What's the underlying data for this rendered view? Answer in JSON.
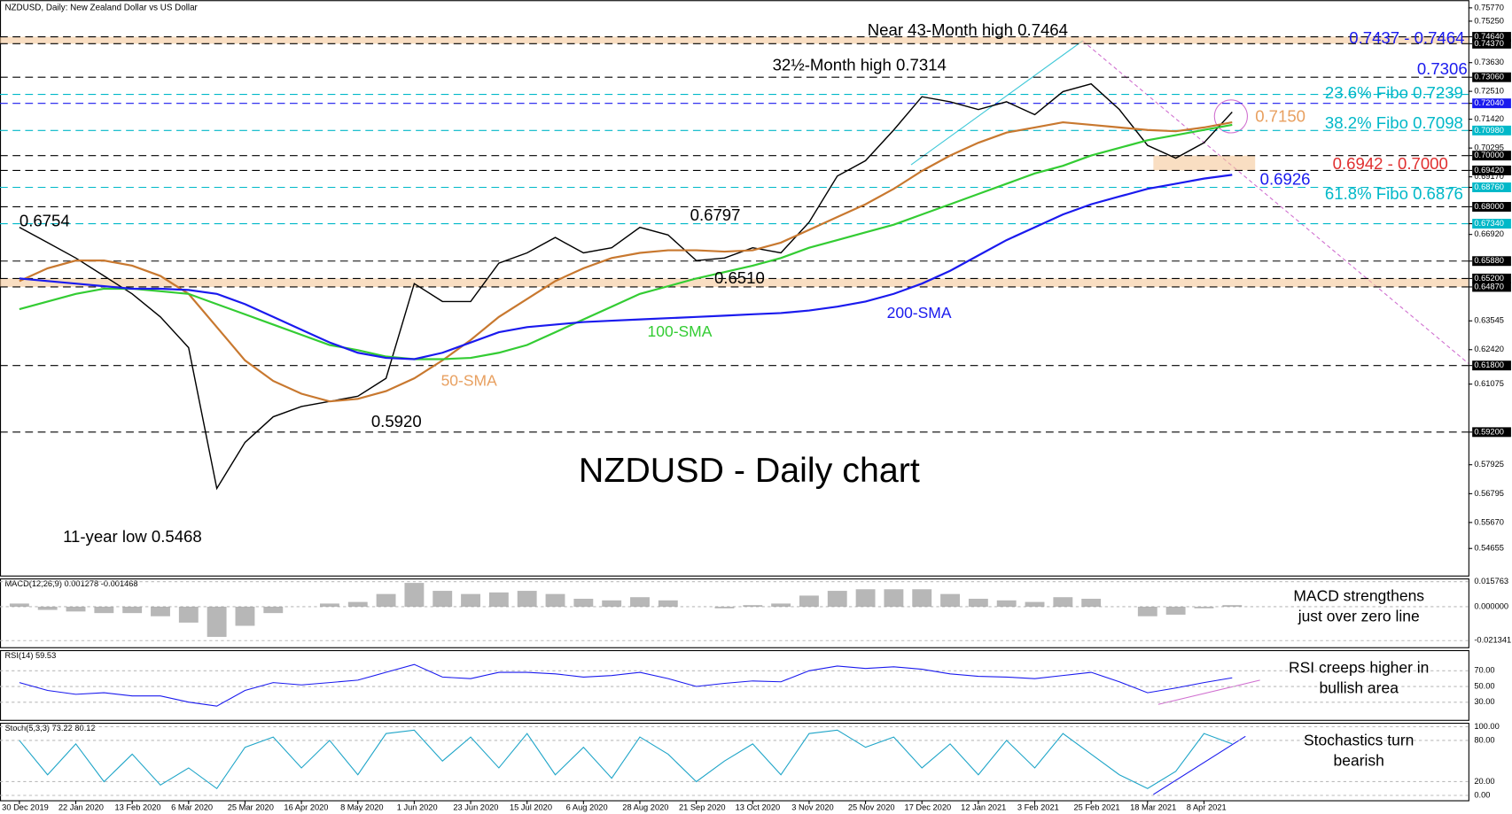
{
  "chart_data": {
    "type": "line",
    "header": "NZDUSD, Daily:  New Zealand Dollar vs US Dollar",
    "title": "NZDUSD - Daily chart",
    "categories": [
      "30 Dec 2019",
      null,
      "22 Jan 2020",
      null,
      "13 Feb 2020",
      null,
      "6 Mar 2020",
      null,
      "25 Mar 2020",
      null,
      "16 Apr 2020",
      null,
      "8 May 2020",
      null,
      "1 Jun 2020",
      null,
      "23 Jun 2020",
      null,
      "15 Jul 2020",
      null,
      "6 Aug 2020",
      null,
      "28 Aug 2020",
      null,
      "21 Sep 2020",
      null,
      "13 Oct 2020",
      null,
      "3 Nov 2020",
      null,
      "25 Nov 2020",
      null,
      "17 Dec 2020",
      null,
      "12 Jan 2021",
      null,
      "3 Feb 2021",
      null,
      "25 Feb 2021",
      null,
      "18 Mar 2021",
      null,
      "8 Apr 2021",
      null
    ],
    "series": [
      {
        "color": "#000000",
        "values": [
          0.672,
          0.666,
          0.66,
          0.653,
          0.646,
          0.637,
          0.625,
          0.57,
          0.588,
          0.598,
          0.602,
          0.604,
          0.606,
          0.613,
          0.65,
          0.643,
          0.643,
          0.658,
          0.662,
          0.668,
          0.662,
          0.664,
          0.672,
          0.669,
          0.659,
          0.66,
          0.664,
          0.662,
          0.674,
          0.692,
          0.698,
          0.71,
          0.723,
          0.721,
          0.718,
          0.721,
          0.716,
          0.725,
          0.728,
          0.718,
          0.704,
          0.699,
          0.705,
          0.717
        ]
      },
      {
        "color": "#c8782f",
        "values": [
          0.651,
          0.656,
          0.659,
          0.659,
          0.657,
          0.653,
          0.646,
          0.633,
          0.62,
          0.612,
          0.607,
          0.604,
          0.605,
          0.608,
          0.613,
          0.62,
          0.628,
          0.637,
          0.644,
          0.651,
          0.656,
          0.66,
          0.662,
          0.663,
          0.663,
          0.6625,
          0.663,
          0.666,
          0.671,
          0.676,
          0.681,
          0.687,
          0.694,
          0.7,
          0.705,
          0.709,
          0.711,
          0.713,
          0.712,
          0.711,
          0.71,
          0.7095,
          0.711,
          0.713
        ]
      },
      {
        "color": "#33cc33",
        "values": [
          0.64,
          0.643,
          0.646,
          0.648,
          0.648,
          0.647,
          0.646,
          0.642,
          0.638,
          0.634,
          0.63,
          0.626,
          0.624,
          0.6215,
          0.6205,
          0.6205,
          0.621,
          0.623,
          0.626,
          0.631,
          0.636,
          0.641,
          0.646,
          0.649,
          0.652,
          0.6545,
          0.657,
          0.66,
          0.664,
          0.667,
          0.67,
          0.673,
          0.677,
          0.681,
          0.685,
          0.689,
          0.693,
          0.696,
          0.7,
          0.703,
          0.706,
          0.708,
          0.71,
          0.712
        ]
      },
      {
        "color": "#1a1aee",
        "values": [
          0.652,
          0.651,
          0.65,
          0.649,
          0.648,
          0.648,
          0.6475,
          0.646,
          0.642,
          0.637,
          0.632,
          0.627,
          0.623,
          0.621,
          0.6205,
          0.623,
          0.627,
          0.631,
          0.633,
          0.634,
          0.635,
          0.6355,
          0.636,
          0.6365,
          0.637,
          0.6375,
          0.638,
          0.6385,
          0.6395,
          0.641,
          0.643,
          0.646,
          0.65,
          0.655,
          0.661,
          0.667,
          0.672,
          0.677,
          0.681,
          0.684,
          0.687,
          0.689,
          0.691,
          0.6925
        ]
      }
    ],
    "ylim": [
      0.5356,
      0.7607
    ],
    "yticks": [
      {
        "value": 0.7577,
        "label": "0.75770"
      },
      {
        "value": 0.7525,
        "label": "0.75250"
      },
      {
        "value": 0.7464,
        "label": "0.74640"
      },
      {
        "value": 0.7437,
        "label": "0.74370"
      },
      {
        "value": 0.7363,
        "label": "0.73630"
      },
      {
        "value": 0.7306,
        "label": "0.73060"
      },
      {
        "value": 0.7251,
        "label": "0.72510"
      },
      {
        "value": 0.7204,
        "label": "0.72040"
      },
      {
        "value": 0.7142,
        "label": "0.71420"
      },
      {
        "value": 0.7098,
        "label": "0.70980"
      },
      {
        "value": 0.70295,
        "label": "0.70295"
      },
      {
        "value": 0.7,
        "label": "0.70000"
      },
      {
        "value": 0.6942,
        "label": "0.69420"
      },
      {
        "value": 0.6917,
        "label": "0.69170"
      },
      {
        "value": 0.6876,
        "label": "0.68760"
      },
      {
        "value": 0.68,
        "label": "0.68000"
      },
      {
        "value": 0.6734,
        "label": "0.67340"
      },
      {
        "value": 0.6692,
        "label": "0.66920"
      },
      {
        "value": 0.6588,
        "label": "0.65880"
      },
      {
        "value": 0.652,
        "label": "0.65200"
      },
      {
        "value": 0.6487,
        "label": "0.64870"
      },
      {
        "value": 0.63545,
        "label": "0.63545"
      },
      {
        "value": 0.6242,
        "label": "0.62420"
      },
      {
        "value": 0.618,
        "label": "0.61800"
      },
      {
        "value": 0.61075,
        "label": "0.61075"
      },
      {
        "value": 0.592,
        "label": "0.59200"
      },
      {
        "value": 0.57925,
        "label": "0.57925"
      },
      {
        "value": 0.56795,
        "label": "0.56795"
      },
      {
        "value": 0.5567,
        "label": "0.55670"
      },
      {
        "value": 0.54655,
        "label": "0.54655"
      }
    ],
    "levels": [
      {
        "value": 0.7464,
        "color": "#000000"
      },
      {
        "value": 0.7437,
        "color": "#000000"
      },
      {
        "value": 0.7306,
        "color": "#000000"
      },
      {
        "value": 0.7239,
        "color": "#00b8c8"
      },
      {
        "value": 0.7204,
        "color": "#1a1aee"
      },
      {
        "value": 0.7098,
        "color": "#00b8c8"
      },
      {
        "value": 0.7,
        "color": "#000000"
      },
      {
        "value": 0.6942,
        "color": "#000000"
      },
      {
        "value": 0.6876,
        "color": "#00b8c8"
      },
      {
        "value": 0.68,
        "color": "#000000"
      },
      {
        "value": 0.6734,
        "color": "#00b8c8"
      },
      {
        "value": 0.6588,
        "color": "#000000"
      },
      {
        "value": 0.652,
        "color": "#000000"
      },
      {
        "value": 0.6487,
        "color": "#000000"
      },
      {
        "value": 0.618,
        "color": "#000000"
      },
      {
        "value": 0.592,
        "color": "#000000"
      }
    ],
    "bands": [
      [
        0.7437,
        0.7464
      ],
      [
        0.6487,
        0.652
      ],
      [
        0.6942,
        0.7
      ]
    ],
    "annotations": [
      {
        "text": "Near 43-Month high 0.7464",
        "color": "#000000"
      },
      {
        "text": "32½-Month high 0.7314",
        "color": "#000000"
      },
      {
        "text": "0.7437 - 0.7464",
        "color": "#1a1aee"
      },
      {
        "text": "0.7306",
        "color": "#1a1aee"
      },
      {
        "text": "23.6% Fibo 0.7239",
        "color": "#00b8c8"
      },
      {
        "text": "38.2% Fibo 0.7098",
        "color": "#00b8c8"
      },
      {
        "text": "0.7150",
        "color": "#e8a060"
      },
      {
        "text": "0.6942 - 0.7000",
        "color": "#e03030"
      },
      {
        "text": "0.6926",
        "color": "#1a1aee"
      },
      {
        "text": "61.8% Fibo 0.6876",
        "color": "#00b8c8"
      },
      {
        "text": "0.6754",
        "color": "#000000"
      },
      {
        "text": "0.6797",
        "color": "#000000"
      },
      {
        "text": "0.6510",
        "color": "#000000"
      },
      {
        "text": "200-SMA",
        "color": "#1a1aee"
      },
      {
        "text": "100-SMA",
        "color": "#33cc33"
      },
      {
        "text": "50-SMA",
        "color": "#e8a060"
      },
      {
        "text": "0.5920",
        "color": "#000000"
      },
      {
        "text": "11-year low 0.5468",
        "color": "#000000"
      }
    ],
    "macd": {
      "label": "MACD(12,26,9) 0.001278 -0.001468",
      "color": "#999999",
      "values": [
        0.002,
        -0.002,
        -0.003,
        -0.004,
        -0.004,
        -0.006,
        -0.01,
        -0.019,
        -0.012,
        -0.004,
        0.0,
        0.002,
        0.003,
        0.008,
        0.015,
        0.01,
        0.008,
        0.009,
        0.01,
        0.008,
        0.005,
        0.004,
        0.006,
        0.004,
        0.0,
        -0.001,
        0.001,
        0.002,
        0.007,
        0.01,
        0.011,
        0.011,
        0.011,
        0.008,
        0.005,
        0.004,
        0.003,
        0.006,
        0.005,
        0.0,
        -0.006,
        -0.005,
        -0.001,
        0.001
      ],
      "ylim": [
        -0.0255,
        0.0178
      ],
      "yticks": [
        {
          "value": 0.015763,
          "label": "0.015763"
        },
        {
          "value": 0,
          "label": "0.000000"
        },
        {
          "value": -0.021341,
          "label": "-0.021341"
        }
      ],
      "note": [
        "MACD strengthens",
        "just over zero line"
      ]
    },
    "rsi": {
      "label": "RSI(14) 59.53",
      "color": "#1a1aee",
      "values": [
        55,
        45,
        40,
        42,
        38,
        38,
        30,
        25,
        45,
        55,
        52,
        55,
        58,
        68,
        78,
        62,
        60,
        68,
        68,
        66,
        62,
        64,
        68,
        60,
        50,
        54,
        57,
        56,
        70,
        76,
        73,
        75,
        72,
        66,
        63,
        62,
        60,
        64,
        68,
        56,
        42,
        48,
        55,
        61
      ],
      "ylim": [
        7.5,
        96.25
      ],
      "yticks": [
        {
          "value": 70,
          "label": "70.00"
        },
        {
          "value": 50,
          "label": "50.00"
        },
        {
          "value": 30,
          "label": "30.00"
        }
      ],
      "note": [
        "RSI creeps higher in",
        "bullish area"
      ]
    },
    "stoch": {
      "label": "Stoch(5,3,3) 73.22 80.12",
      "color": "#1fa5c8",
      "values": [
        80,
        30,
        75,
        20,
        60,
        15,
        40,
        10,
        70,
        85,
        40,
        80,
        30,
        90,
        95,
        50,
        85,
        40,
        90,
        30,
        70,
        25,
        85,
        60,
        20,
        50,
        75,
        30,
        90,
        95,
        70,
        85,
        40,
        75,
        30,
        80,
        40,
        90,
        60,
        30,
        10,
        35,
        90,
        75
      ],
      "ylim": [
        -7.1,
        105.7
      ],
      "yticks": [
        {
          "value": 100,
          "label": "100.00"
        },
        {
          "value": 80,
          "label": "80.00"
        },
        {
          "value": 20,
          "label": "20.00"
        },
        {
          "value": 0,
          "label": "0.00"
        }
      ],
      "note": [
        "Stochastics turn",
        "bearish"
      ]
    }
  }
}
